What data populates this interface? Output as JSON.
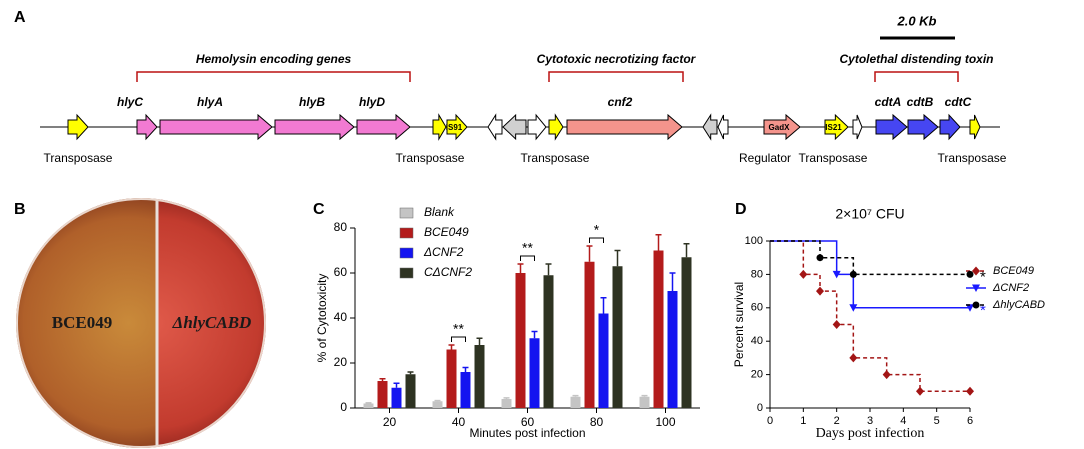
{
  "panel_a": {
    "label": "A",
    "scale_bar": "2.0 Kb",
    "groups": [
      "Hemolysin encoding genes",
      "Cytotoxic necrotizing factor",
      "Cytolethal distending toxin"
    ],
    "genes": [
      "hlyC",
      "hlyA",
      "hlyB",
      "hlyD",
      "cnf2",
      "cdtA",
      "cdtB",
      "cdtC"
    ],
    "elements": [
      "IS91",
      "GadX",
      "IS21"
    ],
    "annotations": [
      "Transposase",
      "Transposase",
      "Transposase",
      "Regulator",
      "Transposase",
      "Transposase"
    ]
  },
  "panel_b": {
    "label": "B",
    "strains": [
      "BCE049",
      "ΔhlyCABD"
    ]
  },
  "chart_data": [
    {
      "type": "bar",
      "label": "C",
      "ylabel": "% of Cytotoxicity",
      "xlabel": "Minutes post infection",
      "categories": [
        20,
        40,
        60,
        80,
        100
      ],
      "ylim": [
        0,
        80
      ],
      "yticks": [
        0,
        20,
        40,
        60,
        80
      ],
      "grid": false,
      "series": [
        {
          "name": "Blank",
          "color": "#c4c4c4",
          "values": [
            2,
            3,
            4,
            5,
            5
          ],
          "errors": [
            0.3,
            0.3,
            0.5,
            0.5,
            0.5
          ]
        },
        {
          "name": "BCE049",
          "color": "#b31b1b",
          "values": [
            12,
            26,
            60,
            65,
            70
          ],
          "errors": [
            1,
            2,
            4,
            7,
            7
          ]
        },
        {
          "name": "ΔCNF2",
          "color": "#1414f0",
          "values": [
            9,
            16,
            31,
            42,
            52
          ],
          "errors": [
            2,
            2,
            3,
            7,
            8
          ]
        },
        {
          "name": "CΔCNF2",
          "color": "#2e3322",
          "values": [
            15,
            28,
            59,
            63,
            67
          ],
          "errors": [
            1,
            3,
            5,
            7,
            6
          ]
        }
      ],
      "annotations": [
        {
          "text": "**",
          "x": 40
        },
        {
          "text": "**",
          "x": 60
        },
        {
          "text": "*",
          "x": 80
        }
      ]
    },
    {
      "type": "line",
      "label": "D",
      "title": "2×10⁷ CFU",
      "ylabel": "Percent survival",
      "xlabel": "Days post infection",
      "xlim": [
        0,
        6
      ],
      "xticks": [
        0,
        1,
        2,
        3,
        4,
        5,
        6
      ],
      "ylim": [
        0,
        100
      ],
      "yticks": [
        0,
        20,
        40,
        60,
        80,
        100
      ],
      "step": true,
      "series": [
        {
          "name": "BCE049",
          "color": "#a31515",
          "marker": "diamond",
          "dashed": true,
          "x": [
            0,
            1,
            1.5,
            2,
            2.5,
            3.5,
            4.5,
            6
          ],
          "values": [
            100,
            80,
            70,
            50,
            30,
            20,
            10,
            10
          ]
        },
        {
          "name": "ΔCNF2",
          "color": "#1a1aff",
          "marker": "triangle",
          "dashed": false,
          "annotation": "*",
          "x": [
            0,
            2,
            2.5,
            6
          ],
          "values": [
            100,
            80,
            60,
            60
          ]
        },
        {
          "name": "ΔhlyCABD",
          "color": "#000000",
          "marker": "circle",
          "dashed": true,
          "annotation": "*",
          "x": [
            0,
            1.5,
            2.5,
            6
          ],
          "values": [
            100,
            90,
            80,
            80
          ]
        }
      ]
    }
  ]
}
